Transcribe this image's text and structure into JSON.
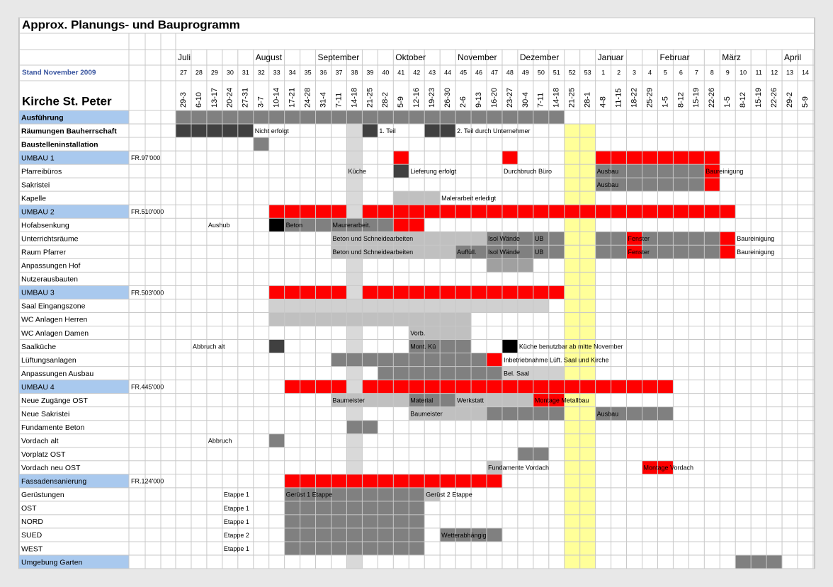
{
  "title": "Approx. Planungs- und Bauprogramm",
  "status": "Stand November 2009",
  "project": "Kirche St. Peter",
  "months": [
    {
      "week": 27,
      "name": "Juli"
    },
    {
      "week": 32,
      "name": "August"
    },
    {
      "week": 36,
      "name": "September"
    },
    {
      "week": 41,
      "name": "Oktober"
    },
    {
      "week": 45,
      "name": "November"
    },
    {
      "week": 49,
      "name": "Dezember"
    },
    {
      "week": 1,
      "name": "Januar"
    },
    {
      "week": 5,
      "name": "Februar"
    },
    {
      "week": 9,
      "name": "März"
    },
    {
      "week": 13,
      "name": "April"
    }
  ],
  "weeks": [
    27,
    28,
    29,
    30,
    31,
    32,
    33,
    34,
    35,
    36,
    37,
    38,
    39,
    40,
    41,
    42,
    43,
    44,
    45,
    46,
    47,
    48,
    49,
    50,
    51,
    52,
    53,
    1,
    2,
    3,
    4,
    5,
    6,
    7,
    8,
    9,
    10,
    11,
    12,
    13,
    14
  ],
  "dates": [
    "29-3",
    "6-10",
    "13-17",
    "20-24",
    "27-31",
    "3-7",
    "10-14",
    "17-21",
    "24-28",
    "31-4",
    "7-11",
    "14-18",
    "21-25",
    "28-2",
    "5-9",
    "12-16",
    "19-23",
    "26-30",
    "2-6",
    "9-13",
    "16-20",
    "23-27",
    "30-4",
    "7-11",
    "14-18",
    "21-25",
    "28-1",
    "4-8",
    "11-15",
    "18-22",
    "25-29",
    "1-5",
    "8-12",
    "15-19",
    "22-26",
    "1-5",
    "8-12",
    "15-19",
    "22-26",
    "29-2",
    "5-9"
  ],
  "column_fills": [
    {
      "week": 38,
      "color": "#d9d9d9"
    },
    {
      "week": 52,
      "color": "#ffff99"
    },
    {
      "week": 53,
      "color": "#ffff99"
    }
  ],
  "rows": [
    {
      "label": "Ausführung",
      "style": "header",
      "bars": [
        {
          "from": 27,
          "to": 51,
          "color": "#808080"
        }
      ]
    },
    {
      "label": "Räumungen Bauherrschaft",
      "style": "bold",
      "bars": [
        {
          "from": 27,
          "to": 31,
          "color": "#404040"
        },
        {
          "from": 39,
          "to": 39,
          "color": "#404040"
        },
        {
          "from": 43,
          "to": 44,
          "color": "#404040"
        }
      ],
      "notes": [
        {
          "week": 32,
          "text": "Nicht erfolgt"
        },
        {
          "week": 40,
          "text": "1. Teil"
        },
        {
          "week": 45,
          "text": "2. Teil durch Unternehmer"
        }
      ]
    },
    {
      "label": "Baustelleninstallation",
      "style": "bold",
      "bars": [
        {
          "from": 32,
          "to": 32,
          "color": "#808080"
        }
      ]
    },
    {
      "label": "UMBAU 1",
      "style": "section",
      "amount": "FR.97'000",
      "bars": [
        {
          "from": 41,
          "to": 41,
          "color": "#ff0000"
        },
        {
          "from": 48,
          "to": 48,
          "color": "#ff0000"
        },
        {
          "from": 1,
          "to": 8,
          "color": "#ff0000"
        }
      ]
    },
    {
      "label": "Pfarreibüros",
      "bars": [
        {
          "from": 41,
          "to": 41,
          "color": "#404040"
        },
        {
          "from": 1,
          "to": 7,
          "color": "#808080"
        },
        {
          "from": 8,
          "to": 8,
          "color": "#ff0000"
        }
      ],
      "notes": [
        {
          "week": 38,
          "text": "Küche"
        },
        {
          "week": 42,
          "text": "Lieferung erfolgt"
        },
        {
          "week": 48,
          "text": "Durchbruch Büro"
        },
        {
          "week": 1,
          "text": "Ausbau"
        },
        {
          "week": 8,
          "text": "Baureinigung"
        }
      ]
    },
    {
      "label": "Sakristei",
      "bars": [
        {
          "from": 1,
          "to": 7,
          "color": "#808080"
        },
        {
          "from": 8,
          "to": 8,
          "color": "#ff0000"
        }
      ],
      "notes": [
        {
          "week": 1,
          "text": "Ausbau"
        }
      ]
    },
    {
      "label": "Kapelle",
      "bars": [
        {
          "from": 41,
          "to": 43,
          "color": "#c0c0c0"
        }
      ],
      "notes": [
        {
          "week": 44,
          "text": "Malerarbeit erledigt"
        }
      ]
    },
    {
      "label": "UMBAU 2",
      "style": "section",
      "amount": "FR.510'000",
      "bars": [
        {
          "from": 33,
          "to": 37,
          "color": "#ff0000"
        },
        {
          "from": 39,
          "to": 9,
          "color": "#ff0000"
        }
      ]
    },
    {
      "label": "Hofabsenkung",
      "bars": [
        {
          "from": 33,
          "to": 33,
          "color": "#000000"
        },
        {
          "from": 34,
          "to": 40,
          "color": "#808080"
        },
        {
          "from": 41,
          "to": 42,
          "color": "#ff0000"
        }
      ],
      "notes": [
        {
          "week": 29,
          "text": "Aushub"
        },
        {
          "week": 34,
          "text": "Beton"
        },
        {
          "week": 37,
          "text": "Maurerarbeit."
        }
      ]
    },
    {
      "label": "Unterrichtsräume",
      "bars": [
        {
          "from": 37,
          "to": 46,
          "color": "#c0c0c0"
        },
        {
          "from": 47,
          "to": 51,
          "color": "#808080"
        },
        {
          "from": 1,
          "to": 2,
          "color": "#808080"
        },
        {
          "from": 3,
          "to": 3,
          "color": "#ff0000"
        },
        {
          "from": 4,
          "to": 8,
          "color": "#808080"
        },
        {
          "from": 9,
          "to": 9,
          "color": "#ff0000"
        }
      ],
      "notes": [
        {
          "week": 37,
          "text": "Beton und Schneidearbeiten"
        },
        {
          "week": 47,
          "text": "Isol Wände"
        },
        {
          "week": 50,
          "text": "UB"
        },
        {
          "week": 3,
          "text": "Fenster"
        },
        {
          "week": 10,
          "text": "Baureinigung"
        }
      ]
    },
    {
      "label": "Raum Pfarrer",
      "bars": [
        {
          "from": 37,
          "to": 44,
          "color": "#c0c0c0"
        },
        {
          "from": 45,
          "to": 51,
          "color": "#808080"
        },
        {
          "from": 1,
          "to": 2,
          "color": "#808080"
        },
        {
          "from": 3,
          "to": 3,
          "color": "#ff0000"
        },
        {
          "from": 4,
          "to": 8,
          "color": "#808080"
        },
        {
          "from": 9,
          "to": 9,
          "color": "#ff0000"
        }
      ],
      "notes": [
        {
          "week": 37,
          "text": "Beton und Schneidearbeiten"
        },
        {
          "week": 45,
          "text": "Auffüll."
        },
        {
          "week": 47,
          "text": "Isol Wände"
        },
        {
          "week": 50,
          "text": "UB"
        },
        {
          "week": 3,
          "text": "Fenster"
        },
        {
          "week": 10,
          "text": "Baureinigung"
        }
      ]
    },
    {
      "label": "Anpassungen Hof",
      "bars": [
        {
          "from": 47,
          "to": 49,
          "color": "#a0a0a0"
        }
      ]
    },
    {
      "label": "Nutzerausbauten"
    },
    {
      "label": "UMBAU 3",
      "style": "section",
      "amount": "FR.503'000",
      "bars": [
        {
          "from": 33,
          "to": 37,
          "color": "#ff0000"
        },
        {
          "from": 39,
          "to": 51,
          "color": "#ff0000"
        }
      ]
    },
    {
      "label": "Saal Eingangszone",
      "bars": [
        {
          "from": 33,
          "to": 50,
          "color": "#d0d0d0"
        }
      ]
    },
    {
      "label": "WC Anlagen Herren",
      "bars": [
        {
          "from": 33,
          "to": 45,
          "color": "#c0c0c0"
        }
      ]
    },
    {
      "label": "WC Anlagen Damen",
      "bars": [
        {
          "from": 42,
          "to": 45,
          "color": "#c0c0c0"
        }
      ],
      "notes": [
        {
          "week": 42,
          "text": "Vorb."
        }
      ]
    },
    {
      "label": "Saalküche",
      "bars": [
        {
          "from": 33,
          "to": 33,
          "color": "#404040"
        },
        {
          "from": 42,
          "to": 45,
          "color": "#808080"
        },
        {
          "from": 48,
          "to": 48,
          "color": "#000000"
        }
      ],
      "notes": [
        {
          "week": 28,
          "text": "Abbruch alt"
        },
        {
          "week": 42,
          "text": "Mont. Kü"
        },
        {
          "week": 49,
          "text": "Küche benutzbar ab mitte November"
        }
      ]
    },
    {
      "label": "Lüftungsanlagen",
      "bars": [
        {
          "from": 37,
          "to": 46,
          "color": "#808080"
        },
        {
          "from": 47,
          "to": 47,
          "color": "#ff0000"
        }
      ],
      "notes": [
        {
          "week": 48,
          "text": "Inbetriebnahme Lüft. Saal und Kirche"
        }
      ]
    },
    {
      "label": "Anpassungen Ausbau",
      "bars": [
        {
          "from": 40,
          "to": 47,
          "color": "#808080"
        },
        {
          "from": 48,
          "to": 51,
          "color": "#d0d0d0"
        }
      ],
      "notes": [
        {
          "week": 48,
          "text": "Bel. Saal"
        }
      ]
    },
    {
      "label": "UMBAU 4",
      "style": "section",
      "amount": "FR.445'000",
      "bars": [
        {
          "from": 34,
          "to": 37,
          "color": "#ff0000"
        },
        {
          "from": 39,
          "to": 5,
          "color": "#ff0000"
        }
      ]
    },
    {
      "label": "Neue Zugänge  OST",
      "bars": [
        {
          "from": 37,
          "to": 41,
          "color": "#c0c0c0"
        },
        {
          "from": 42,
          "to": 44,
          "color": "#808080"
        },
        {
          "from": 45,
          "to": 49,
          "color": "#c0c0c0"
        },
        {
          "from": 50,
          "to": 51,
          "color": "#ff0000"
        }
      ],
      "notes": [
        {
          "week": 37,
          "text": "Baumeister"
        },
        {
          "week": 42,
          "text": "Material"
        },
        {
          "week": 45,
          "text": "Werkstatt"
        },
        {
          "week": 50,
          "text": "Montage Metallbau"
        }
      ]
    },
    {
      "label": "Neue Sakristei",
      "bars": [
        {
          "from": 42,
          "to": 46,
          "color": "#c0c0c0"
        },
        {
          "from": 47,
          "to": 51,
          "color": "#808080"
        },
        {
          "from": 1,
          "to": 5,
          "color": "#808080"
        }
      ],
      "notes": [
        {
          "week": 42,
          "text": "Baumeister"
        },
        {
          "week": 1,
          "text": "Ausbau"
        }
      ]
    },
    {
      "label": "Fundamente Beton",
      "bars": [
        {
          "from": 38,
          "to": 39,
          "color": "#808080"
        }
      ]
    },
    {
      "label": "Vordach alt",
      "bars": [
        {
          "from": 33,
          "to": 33,
          "color": "#808080"
        }
      ],
      "notes": [
        {
          "week": 29,
          "text": "Abbruch"
        }
      ]
    },
    {
      "label": "Vorplatz  OST",
      "bars": [
        {
          "from": 49,
          "to": 50,
          "color": "#808080"
        }
      ]
    },
    {
      "label": "Vordach neu OST",
      "bars": [
        {
          "from": 47,
          "to": 47,
          "color": "#c0c0c0"
        },
        {
          "from": 4,
          "to": 5,
          "color": "#ff0000"
        }
      ],
      "notes": [
        {
          "week": 47,
          "text": "Fundamente Vordach"
        },
        {
          "week": 4,
          "text": "Montage Vordach"
        }
      ]
    },
    {
      "label": "Fassadensanierung",
      "style": "section",
      "amount": "FR.124'000",
      "bars": [
        {
          "from": 34,
          "to": 47,
          "color": "#ff0000"
        }
      ]
    },
    {
      "label": "Gerüstungen",
      "bars": [
        {
          "from": 34,
          "to": 42,
          "color": "#808080"
        },
        {
          "from": 43,
          "to": 43,
          "color": "#c0c0c0"
        }
      ],
      "notes": [
        {
          "week": 30,
          "text": "Etappe 1"
        },
        {
          "week": 34,
          "text": "Gerüst 1 Etappe"
        },
        {
          "week": 43,
          "text": "Gerüst 2 Etappe"
        }
      ]
    },
    {
      "label": "OST",
      "bars": [
        {
          "from": 34,
          "to": 42,
          "color": "#808080"
        }
      ],
      "notes": [
        {
          "week": 30,
          "text": "Etappe 1"
        }
      ]
    },
    {
      "label": "NORD",
      "bars": [
        {
          "from": 34,
          "to": 42,
          "color": "#808080"
        }
      ],
      "notes": [
        {
          "week": 30,
          "text": "Etappe 1"
        }
      ]
    },
    {
      "label": "SUED",
      "bars": [
        {
          "from": 34,
          "to": 42,
          "color": "#808080"
        },
        {
          "from": 44,
          "to": 47,
          "color": "#808080"
        }
      ],
      "notes": [
        {
          "week": 30,
          "text": "Etappe 2"
        },
        {
          "week": 44,
          "text": "Wetterabhängig"
        }
      ]
    },
    {
      "label": "WEST",
      "bars": [
        {
          "from": 34,
          "to": 42,
          "color": "#808080"
        }
      ],
      "notes": [
        {
          "week": 30,
          "text": "Etappe 1"
        }
      ]
    },
    {
      "label": "Umgebung Garten",
      "style": "section",
      "bars": [
        {
          "from": 10,
          "to": 12,
          "color": "#808080"
        }
      ]
    }
  ]
}
